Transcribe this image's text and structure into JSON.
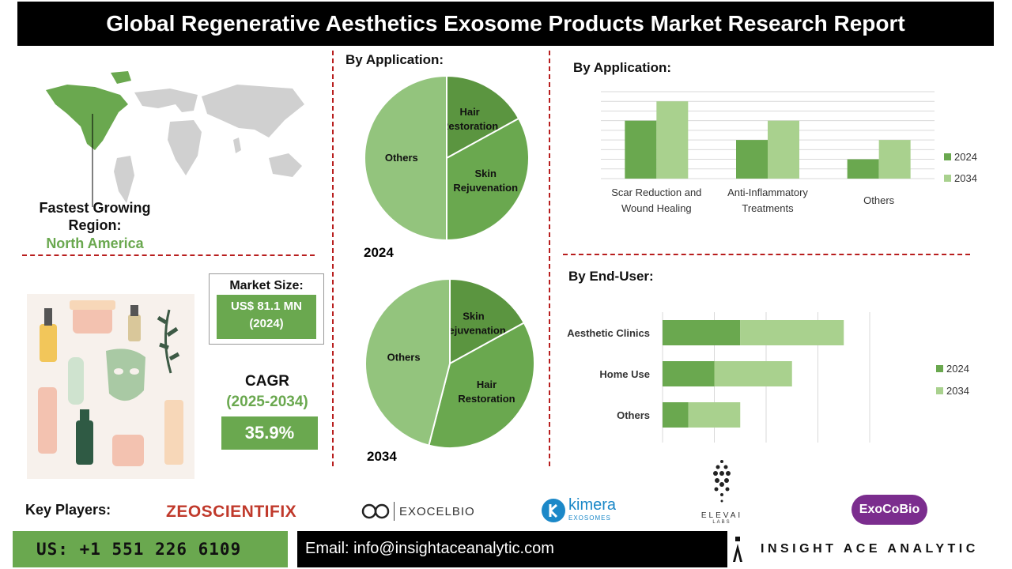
{
  "header": {
    "title": "Global Regenerative Aesthetics Exosome Products Market Research Report"
  },
  "region": {
    "label": "Fastest Growing Region:",
    "value": "North America"
  },
  "market_size": {
    "label": "Market Size:",
    "value_line1": "US$ 81.1 MN",
    "value_line2": "(2024)"
  },
  "cagr": {
    "label": "CAGR",
    "period": "(2025-2034)",
    "value": "35.9%"
  },
  "colors": {
    "dark_green": "#5b9540",
    "mid_green": "#6aa84f",
    "light_green": "#93c47d",
    "pale_green": "#a9d18e",
    "red_dash": "#b81e1e",
    "purple": "#7b2d8e"
  },
  "pie_section": {
    "title": "By Application:"
  },
  "bar_app": {
    "title": "By  Application:"
  },
  "bar_end": {
    "title": "By End-User:"
  },
  "chart_data": [
    {
      "type": "pie",
      "title": "2024",
      "labels": [
        "Hair Restoration",
        "Skin Rejuvenation",
        "Others"
      ],
      "values": [
        17,
        33,
        50
      ]
    },
    {
      "type": "pie",
      "title": "2034",
      "labels": [
        "Skin Rejuvenation",
        "Hair Restoration",
        "Others"
      ],
      "values": [
        17,
        37,
        46
      ]
    },
    {
      "type": "bar",
      "categories": [
        "Scar Reduction and Wound Healing",
        "Anti-Inflammatory Treatments",
        "Others"
      ],
      "series": [
        {
          "name": "2024",
          "values": [
            3,
            2,
            1
          ]
        },
        {
          "name": "2034",
          "values": [
            4,
            3,
            2
          ]
        }
      ],
      "legend": "right",
      "grid": true,
      "ylim": [
        0,
        4.5
      ]
    },
    {
      "type": "bar",
      "orientation": "horizontal",
      "stacked": true,
      "categories": [
        "Aesthetic Clinics",
        "Home Use",
        "Others"
      ],
      "series": [
        {
          "name": "2024",
          "values": [
            1.5,
            1.0,
            0.5
          ]
        },
        {
          "name": "2034",
          "values": [
            2.0,
            1.5,
            1.0
          ]
        }
      ],
      "legend": "right",
      "grid": true,
      "xlim": [
        0,
        4
      ]
    }
  ],
  "key_players": {
    "label": "Key Players:",
    "logos": [
      "ZEOSCIENTIFIX",
      "EXOCELBIO",
      "kimera",
      "EXOSOMES",
      "ELEVAI",
      "LABS",
      "ExoCoBio"
    ]
  },
  "footer": {
    "phone": "US: +1 551 226 6109",
    "email": "Email: info@insightaceanalytic.com",
    "brand": "INSIGHT ACE ANALYTIC"
  }
}
